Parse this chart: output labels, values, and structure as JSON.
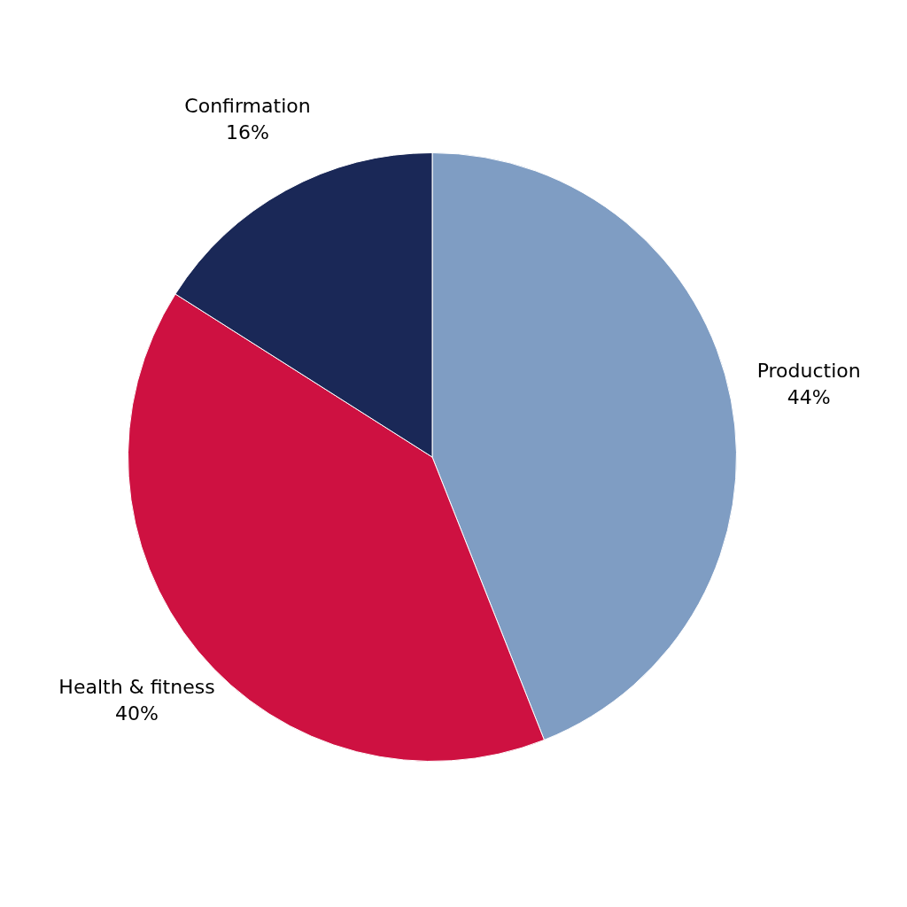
{
  "chart_data": {
    "type": "pie",
    "categories": [
      "Production",
      "Health & fitness",
      "Confirmation"
    ],
    "values": [
      44,
      40,
      16
    ],
    "colors": [
      "#7f9dc3",
      "#ce1141",
      "#1a2857"
    ],
    "value_labels": [
      "44%",
      "40%",
      "16%"
    ],
    "legend": false
  }
}
